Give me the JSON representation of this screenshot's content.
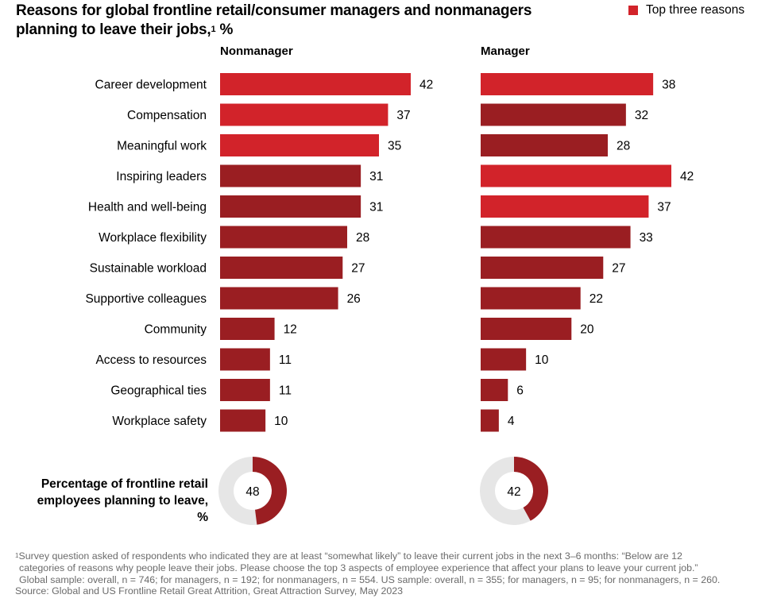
{
  "header": {
    "title": "Reasons for global frontline retail/consumer managers and nonmanagers planning to leave their jobs,",
    "title_sup": "1",
    "title_unit": "%"
  },
  "legend": {
    "label": "Top three reasons",
    "color": "#d2232a"
  },
  "colors": {
    "top": "#d2232a",
    "other": "#9a1e22",
    "donut_rest": "#e6e6e6"
  },
  "chart_data": {
    "type": "bar",
    "orientation": "horizontal",
    "categories": [
      "Career development",
      "Compensation",
      "Meaningful work",
      "Inspiring leaders",
      "Health and well-being",
      "Workplace flexibility",
      "Sustainable workload",
      "Supportive colleagues",
      "Community",
      "Access to resources",
      "Geographical ties",
      "Workplace safety"
    ],
    "series": [
      {
        "name": "Nonmanager",
        "values": [
          42,
          37,
          35,
          31,
          31,
          28,
          27,
          26,
          12,
          11,
          11,
          10
        ],
        "top_three": [
          true,
          true,
          true,
          false,
          false,
          false,
          false,
          false,
          false,
          false,
          false,
          false
        ]
      },
      {
        "name": "Manager",
        "values": [
          38,
          32,
          28,
          42,
          37,
          33,
          27,
          22,
          20,
          10,
          6,
          4
        ],
        "top_three": [
          true,
          false,
          false,
          true,
          true,
          false,
          false,
          false,
          false,
          false,
          false,
          false
        ]
      }
    ],
    "unit": "%",
    "legend": "top-right",
    "donuts": {
      "label": [
        "Percentage of frontline retail",
        "employees planning to leave, %"
      ],
      "values": [
        {
          "name": "Nonmanager",
          "value": 48
        },
        {
          "name": "Manager",
          "value": 42
        }
      ]
    }
  },
  "footnote": {
    "lines": [
      "Survey question asked of respondents who indicated they are at least “somewhat likely” to leave their current jobs in the next 3–6 months: “Below are 12",
      "categories of reasons why people leave their jobs. Please choose the top 3 aspects of employee experience that affect your plans to leave your current job.”",
      "Global sample: overall, n = 746; for managers, n = 192; for nonmanagers, n = 554. US sample: overall, n = 355; for managers, n = 95; for nonmanagers, n = 260."
    ],
    "sup": "1",
    "source": "Source: Global and US Frontline Retail Great Attrition, Great Attraction Survey, May 2023"
  }
}
